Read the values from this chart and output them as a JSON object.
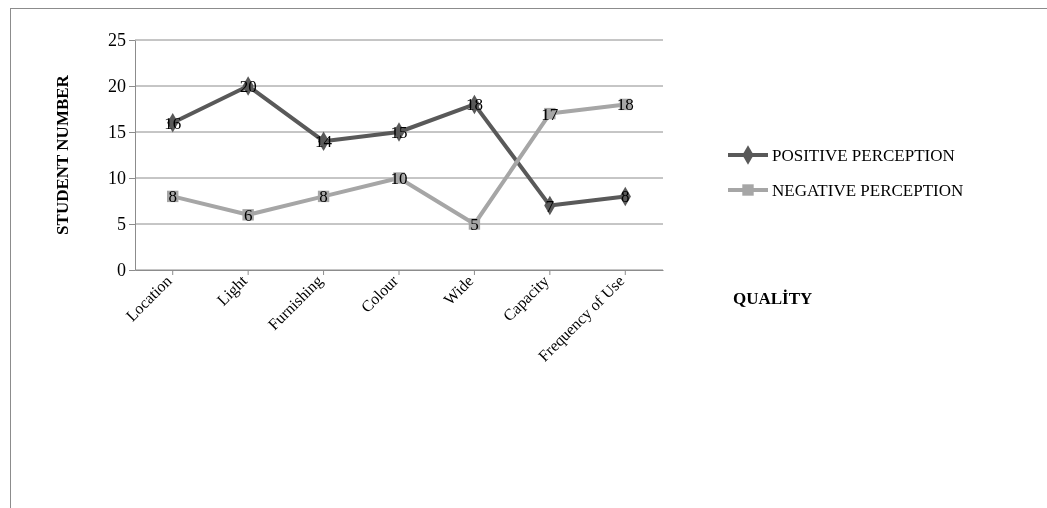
{
  "chart_data": {
    "type": "line",
    "xlabel": "QUALİTY",
    "ylabel": "STUDENT NUMBER",
    "categories": [
      "Location",
      "Light",
      "Furnishing",
      "Colour",
      "Wide",
      "Capacity",
      "Frequency of Use"
    ],
    "series": [
      {
        "name": "POSITIVE PERCEPTION",
        "color": "#595959",
        "marker": "diamond",
        "values": [
          16,
          20,
          14,
          15,
          18,
          7,
          8
        ]
      },
      {
        "name": "NEGATIVE PERCEPTION",
        "color": "#a6a6a6",
        "marker": "square",
        "values": [
          8,
          6,
          8,
          10,
          5,
          17,
          18
        ]
      }
    ],
    "ylim": [
      0,
      25
    ],
    "yticks": [
      0,
      5,
      10,
      15,
      20,
      25
    ],
    "grid": "y",
    "legend": "right",
    "data_labels": true,
    "line_style": "solid"
  }
}
